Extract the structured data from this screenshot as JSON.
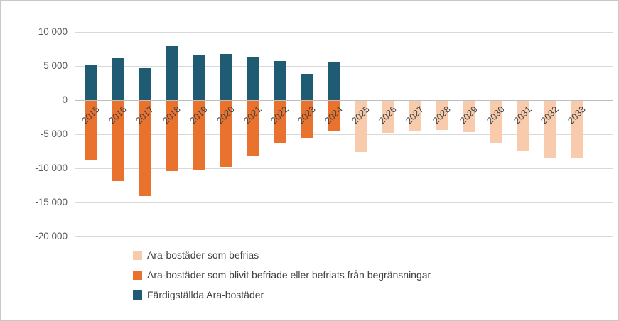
{
  "chart_data": {
    "type": "bar",
    "title": "",
    "xlabel": "",
    "ylabel": "",
    "categories": [
      "2015",
      "2016",
      "2017",
      "2018",
      "2019",
      "2020",
      "2021",
      "2022",
      "2023",
      "2024",
      "2025",
      "2026",
      "2027",
      "2028",
      "2029",
      "2030",
      "2031",
      "2032",
      "2033"
    ],
    "series": [
      {
        "name": "Ara-bostäder som befrias",
        "color": "#F8CBAD",
        "values": [
          null,
          null,
          null,
          null,
          null,
          null,
          null,
          null,
          null,
          null,
          -7500,
          -4700,
          -4500,
          -4300,
          -4600,
          -6200,
          -7300,
          -8400,
          -8300
        ]
      },
      {
        "name": "Ara-bostäder som blivit befriade eller befriats från begränsningar",
        "color": "#E8722E",
        "values": [
          -8700,
          -11800,
          -14000,
          -10300,
          -10100,
          -9700,
          -8000,
          -6300,
          -5500,
          -4400,
          null,
          null,
          null,
          null,
          null,
          null,
          null,
          null,
          null
        ]
      },
      {
        "name": "Färdigställda Ara-bostäder",
        "color": "#1F5C73",
        "values": [
          5200,
          6300,
          4700,
          7900,
          6600,
          6800,
          6400,
          5700,
          3900,
          5600,
          null,
          null,
          null,
          null,
          null,
          null,
          null,
          null,
          null
        ]
      }
    ],
    "ylim": [
      -20000,
      10000
    ],
    "ytick_step": 5000,
    "ytick_labels": [
      "10 000",
      "5 000",
      "0",
      "-5 000",
      "-10 000",
      "-15 000",
      "-20 000"
    ],
    "grid": true,
    "legend_position": "bottom-left"
  }
}
